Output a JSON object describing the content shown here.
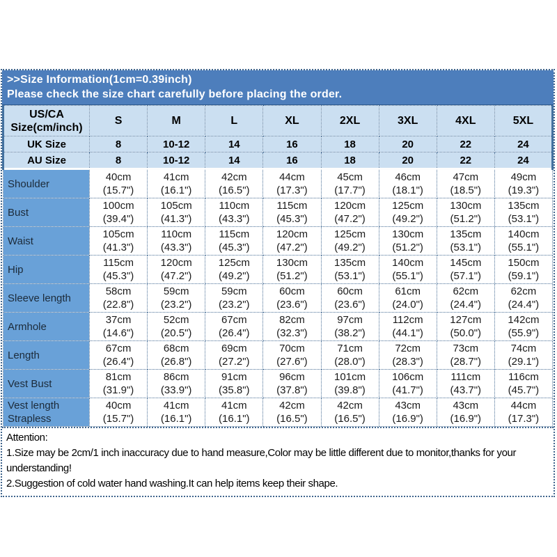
{
  "colors": {
    "title_bar_blue": "#4d7ebc",
    "header_fill_light_blue": "#cbdff1",
    "label_fill_blue": "#69a1d8",
    "dotted_border_blue": "#4a6f96",
    "title_text": "#ffffff",
    "body_text": "#000000"
  },
  "title_bar": {
    "line1": ">>Size Information(1cm=0.39inch)",
    "line2": "Please check the size chart carefully before placing the order."
  },
  "table": {
    "corner": {
      "line1": "US/CA",
      "line2": "Size(cm/inch)"
    },
    "sizes": [
      "S",
      "M",
      "L",
      "XL",
      "2XL",
      "3XL",
      "4XL",
      "5XL"
    ],
    "uk": {
      "label": "UK Size",
      "values": [
        "8",
        "10-12",
        "14",
        "16",
        "18",
        "20",
        "22",
        "24"
      ]
    },
    "au": {
      "label": "AU Size",
      "values": [
        "8",
        "10-12",
        "14",
        "16",
        "18",
        "20",
        "22",
        "24"
      ]
    },
    "rows": [
      {
        "label": "Shoulder",
        "cells": [
          {
            "cm": "40cm",
            "in": "(15.7\")"
          },
          {
            "cm": "41cm",
            "in": "(16.1\")"
          },
          {
            "cm": "42cm",
            "in": "(16.5\")"
          },
          {
            "cm": "44cm",
            "in": "(17.3\")"
          },
          {
            "cm": "45cm",
            "in": "(17.7\")"
          },
          {
            "cm": "46cm",
            "in": "(18.1\")"
          },
          {
            "cm": "47cm",
            "in": "(18.5\")"
          },
          {
            "cm": "49cm",
            "in": "(19.3\")"
          }
        ]
      },
      {
        "label": "Bust",
        "cells": [
          {
            "cm": "100cm",
            "in": "(39.4\")"
          },
          {
            "cm": "105cm",
            "in": "(41.3\")"
          },
          {
            "cm": "110cm",
            "in": "(43.3\")"
          },
          {
            "cm": "115cm",
            "in": "(45.3\")"
          },
          {
            "cm": "120cm",
            "in": "(47.2\")"
          },
          {
            "cm": "125cm",
            "in": "(49.2\")"
          },
          {
            "cm": "130cm",
            "in": "(51.2\")"
          },
          {
            "cm": "135cm",
            "in": "(53.1\")"
          }
        ]
      },
      {
        "label": "Waist",
        "cells": [
          {
            "cm": "105cm",
            "in": "(41.3\")"
          },
          {
            "cm": "110cm",
            "in": "(43.3\")"
          },
          {
            "cm": "115cm",
            "in": "(45.3\")"
          },
          {
            "cm": "120cm",
            "in": "(47.2\")"
          },
          {
            "cm": "125cm",
            "in": "(49.2\")"
          },
          {
            "cm": "130cm",
            "in": "(51.2\")"
          },
          {
            "cm": "135cm",
            "in": "(53.1\")"
          },
          {
            "cm": "140cm",
            "in": "(55.1\")"
          }
        ]
      },
      {
        "label": "Hip",
        "cells": [
          {
            "cm": "115cm",
            "in": "(45.3\")"
          },
          {
            "cm": "120cm",
            "in": "(47.2\")"
          },
          {
            "cm": "125cm",
            "in": "(49.2\")"
          },
          {
            "cm": "130cm",
            "in": "(51.2\")"
          },
          {
            "cm": "135cm",
            "in": "(53.1\")"
          },
          {
            "cm": "140cm",
            "in": "(55.1\")"
          },
          {
            "cm": "145cm",
            "in": "(57.1\")"
          },
          {
            "cm": "150cm",
            "in": "(59.1\")"
          }
        ]
      },
      {
        "label": "Sleeve length",
        "cells": [
          {
            "cm": "58cm",
            "in": "(22.8\")"
          },
          {
            "cm": "59cm",
            "in": "(23.2\")"
          },
          {
            "cm": "59cm",
            "in": "(23.2\")"
          },
          {
            "cm": "60cm",
            "in": "(23.6\")"
          },
          {
            "cm": "60cm",
            "in": "(23.6\")"
          },
          {
            "cm": "61cm",
            "in": "(24.0\")"
          },
          {
            "cm": "62cm",
            "in": "(24.4\")"
          },
          {
            "cm": "62cm",
            "in": "(24.4\")"
          }
        ]
      },
      {
        "label": "Armhole",
        "cells": [
          {
            "cm": "37cm",
            "in": "(14.6\")"
          },
          {
            "cm": "52cm",
            "in": "(20.5\")"
          },
          {
            "cm": "67cm",
            "in": "(26.4\")"
          },
          {
            "cm": "82cm",
            "in": "(32.3\")"
          },
          {
            "cm": "97cm",
            "in": "(38.2\")"
          },
          {
            "cm": "112cm",
            "in": "(44.1\")"
          },
          {
            "cm": "127cm",
            "in": "(50.0\")"
          },
          {
            "cm": "142cm",
            "in": "(55.9\")"
          }
        ]
      },
      {
        "label": "Length",
        "cells": [
          {
            "cm": "67cm",
            "in": "(26.4\")"
          },
          {
            "cm": "68cm",
            "in": "(26.8\")"
          },
          {
            "cm": "69cm",
            "in": "(27.2\")"
          },
          {
            "cm": "70cm",
            "in": "(27.6\")"
          },
          {
            "cm": "71cm",
            "in": "(28.0\")"
          },
          {
            "cm": "72cm",
            "in": "(28.3\")"
          },
          {
            "cm": "73cm",
            "in": "(28.7\")"
          },
          {
            "cm": "74cm",
            "in": "(29.1\")"
          }
        ]
      },
      {
        "label": "Vest Bust",
        "cells": [
          {
            "cm": "81cm",
            "in": "(31.9\")"
          },
          {
            "cm": "86cm",
            "in": "(33.9\")"
          },
          {
            "cm": "91cm",
            "in": "(35.8\")"
          },
          {
            "cm": "96cm",
            "in": "(37.8\")"
          },
          {
            "cm": "101cm",
            "in": "(39.8\")"
          },
          {
            "cm": "106cm",
            "in": "(41.7\")"
          },
          {
            "cm": "111cm",
            "in": "(43.7\")"
          },
          {
            "cm": "116cm",
            "in": "(45.7\")"
          }
        ]
      },
      {
        "label": "Vest length Strapless",
        "cells": [
          {
            "cm": "40cm",
            "in": "(15.7\")"
          },
          {
            "cm": "41cm",
            "in": "(16.1\")"
          },
          {
            "cm": "41cm",
            "in": "(16.1\")"
          },
          {
            "cm": "42cm",
            "in": "(16.5\")"
          },
          {
            "cm": "42cm",
            "in": "(16.5\")"
          },
          {
            "cm": "43cm",
            "in": "(16.9\")"
          },
          {
            "cm": "43cm",
            "in": "(16.9\")"
          },
          {
            "cm": "44cm",
            "in": "(17.3\")"
          }
        ]
      }
    ]
  },
  "attention": {
    "heading": "Attention:",
    "line1": "1.Size may be 2cm/1 inch inaccuracy due to hand measure,Color may be little different due to monitor,thanks for your understanding!",
    "line2": "2.Suggestion of cold water hand washing.It can help items keep their shape."
  }
}
